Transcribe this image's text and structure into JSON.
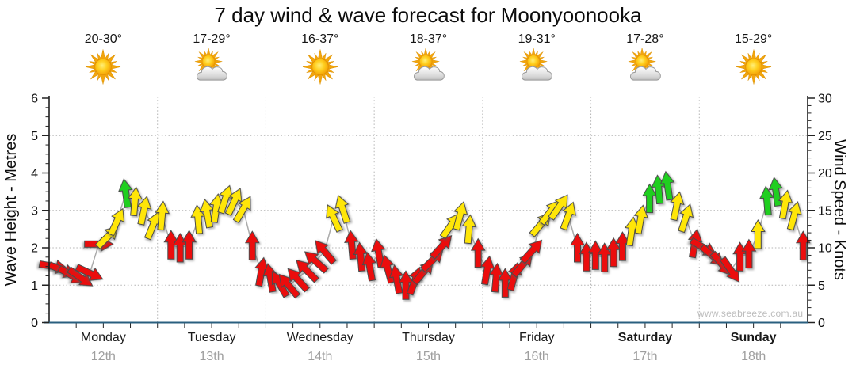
{
  "title": "7 day wind & wave forecast for Moonyoonooka",
  "watermark": "www.seabreeze.com.au",
  "left_axis": {
    "title": "Wave Height - Metres",
    "ticks": [
      0,
      1,
      2,
      3,
      4,
      5,
      6
    ],
    "max": 6
  },
  "right_axis": {
    "title": "Wind Speed - Knots",
    "ticks": [
      0,
      5,
      10,
      15,
      20,
      25,
      30
    ],
    "max": 30
  },
  "days": [
    {
      "name": "Monday",
      "date": "12th",
      "temp": "20-30°",
      "icon": "sun",
      "bold": false
    },
    {
      "name": "Tuesday",
      "date": "13th",
      "temp": "17-29°",
      "icon": "sun-cloud",
      "bold": false
    },
    {
      "name": "Wednesday",
      "date": "14th",
      "temp": "16-37°",
      "icon": "sun",
      "bold": false
    },
    {
      "name": "Thursday",
      "date": "15th",
      "temp": "18-37°",
      "icon": "sun-cloud",
      "bold": false
    },
    {
      "name": "Friday",
      "date": "16th",
      "temp": "19-31°",
      "icon": "sun-cloud",
      "bold": false
    },
    {
      "name": "Saturday",
      "date": "17th",
      "temp": "17-28°",
      "icon": "sun-cloud",
      "bold": true
    },
    {
      "name": "Sunday",
      "date": "18th",
      "temp": "15-29°",
      "icon": "sun",
      "bold": true
    }
  ],
  "chart_data": {
    "type": "wind_arrow_timeseries",
    "title": "7 day wind & wave forecast for Moonyoonooka",
    "categories": [
      "Monday 12th",
      "Tuesday 13th",
      "Wednesday 14th",
      "Thursday 15th",
      "Friday 16th",
      "Saturday 17th",
      "Sunday 18th"
    ],
    "ylabel_left": "Wave Height - Metres",
    "ylabel_right": "Wind Speed - Knots",
    "ylim_left_metres": [
      0,
      6
    ],
    "ylim_right_knots": [
      0,
      30
    ],
    "grid": "dotted horizontal lines at 1-5 m (5-25 kn), dotted vertical lines at day boundaries",
    "arrows_per_day": 12,
    "arrow_note": "each arrow = wind sample [speed_knots, screen_direction_deg (0=up, 90=right), color]; gray line behind arrows is wave height",
    "arrow_colors": {
      "r": "#eb0d0d",
      "y": "#ffe608",
      "g": "#1fcf1f"
    },
    "palette": {
      "grid": "#b4b4b4",
      "axis": "#111111",
      "bottom_axis": "#2a5f7f",
      "wave_line": "#ababab",
      "arrow_outline": "#4a4a4a"
    },
    "series": [
      {
        "day": "Monday",
        "arrows": [
          [
            7.5,
            100,
            "r"
          ],
          [
            7.0,
            112,
            "r"
          ],
          [
            6.3,
            120,
            "r"
          ],
          [
            6.0,
            125,
            "r"
          ],
          [
            6.6,
            115,
            "r"
          ],
          [
            10.5,
            90,
            "r"
          ],
          [
            11.5,
            45,
            "y"
          ],
          [
            13.5,
            25,
            "y"
          ],
          [
            17.3,
            -8,
            "g"
          ],
          [
            16.2,
            5,
            "y"
          ],
          [
            15.0,
            12,
            "y"
          ],
          [
            13.0,
            22,
            "y"
          ]
        ]
      },
      {
        "day": "Tuesday",
        "arrows": [
          [
            14.3,
            5,
            "y"
          ],
          [
            10.4,
            0,
            "r"
          ],
          [
            10.0,
            0,
            "r"
          ],
          [
            10.4,
            0,
            "r"
          ],
          [
            13.8,
            -5,
            "y"
          ],
          [
            14.6,
            -10,
            "y"
          ],
          [
            15.3,
            8,
            "y"
          ],
          [
            16.5,
            18,
            "y"
          ],
          [
            16.2,
            25,
            "y"
          ],
          [
            15.2,
            30,
            "y"
          ],
          [
            10.3,
            0,
            "r"
          ],
          [
            6.8,
            10,
            "r"
          ]
        ]
      },
      {
        "day": "Wednesday",
        "arrows": [
          [
            6.0,
            -10,
            "r"
          ],
          [
            5.2,
            -30,
            "r"
          ],
          [
            5.0,
            -40,
            "r"
          ],
          [
            5.8,
            -42,
            "r"
          ],
          [
            7.0,
            -45,
            "r"
          ],
          [
            8.2,
            -48,
            "r"
          ],
          [
            9.5,
            -40,
            "r"
          ],
          [
            14.0,
            -25,
            "y"
          ],
          [
            15.2,
            -18,
            "y"
          ],
          [
            10.4,
            -5,
            "r"
          ],
          [
            8.8,
            -5,
            "r"
          ],
          [
            7.5,
            -10,
            "r"
          ]
        ]
      },
      {
        "day": "Thursday",
        "arrows": [
          [
            9.3,
            -10,
            "r"
          ],
          [
            7.2,
            -15,
            "r"
          ],
          [
            5.8,
            -10,
            "r"
          ],
          [
            5.0,
            0,
            "r"
          ],
          [
            5.6,
            20,
            "r"
          ],
          [
            6.8,
            40,
            "r"
          ],
          [
            8.4,
            45,
            "r"
          ],
          [
            10.2,
            42,
            "r"
          ],
          [
            13.0,
            35,
            "y"
          ],
          [
            14.3,
            15,
            "y"
          ],
          [
            12.5,
            5,
            "y"
          ],
          [
            9.3,
            0,
            "r"
          ]
        ]
      },
      {
        "day": "Friday",
        "arrows": [
          [
            7.0,
            10,
            "r"
          ],
          [
            6.0,
            5,
            "r"
          ],
          [
            5.3,
            0,
            "r"
          ],
          [
            6.2,
            15,
            "r"
          ],
          [
            7.8,
            40,
            "r"
          ],
          [
            9.6,
            42,
            "r"
          ],
          [
            13.2,
            40,
            "y"
          ],
          [
            14.8,
            38,
            "y"
          ],
          [
            15.5,
            35,
            "y"
          ],
          [
            14.3,
            20,
            "y"
          ],
          [
            10.0,
            0,
            "r"
          ],
          [
            8.8,
            0,
            "r"
          ]
        ]
      },
      {
        "day": "Saturday",
        "arrows": [
          [
            9.0,
            0,
            "r"
          ],
          [
            8.7,
            0,
            "r"
          ],
          [
            9.4,
            0,
            "r"
          ],
          [
            10.2,
            0,
            "r"
          ],
          [
            12.2,
            8,
            "y"
          ],
          [
            13.8,
            10,
            "y"
          ],
          [
            16.6,
            0,
            "g"
          ],
          [
            17.8,
            -5,
            "g"
          ],
          [
            18.3,
            -8,
            "g"
          ],
          [
            15.6,
            12,
            "y"
          ],
          [
            14.0,
            18,
            "y"
          ],
          [
            10.6,
            10,
            "r"
          ]
        ]
      },
      {
        "day": "Sunday",
        "arrows": [
          [
            10.0,
            120,
            "r"
          ],
          [
            8.9,
            130,
            "r"
          ],
          [
            7.8,
            140,
            "r"
          ],
          [
            7.0,
            145,
            "r"
          ],
          [
            8.8,
            0,
            "r"
          ],
          [
            9.2,
            0,
            "r"
          ],
          [
            11.8,
            0,
            "y"
          ],
          [
            16.3,
            -5,
            "g"
          ],
          [
            17.5,
            -8,
            "g"
          ],
          [
            15.8,
            10,
            "y"
          ],
          [
            14.3,
            15,
            "y"
          ],
          [
            10.3,
            0,
            "r"
          ]
        ]
      }
    ]
  }
}
